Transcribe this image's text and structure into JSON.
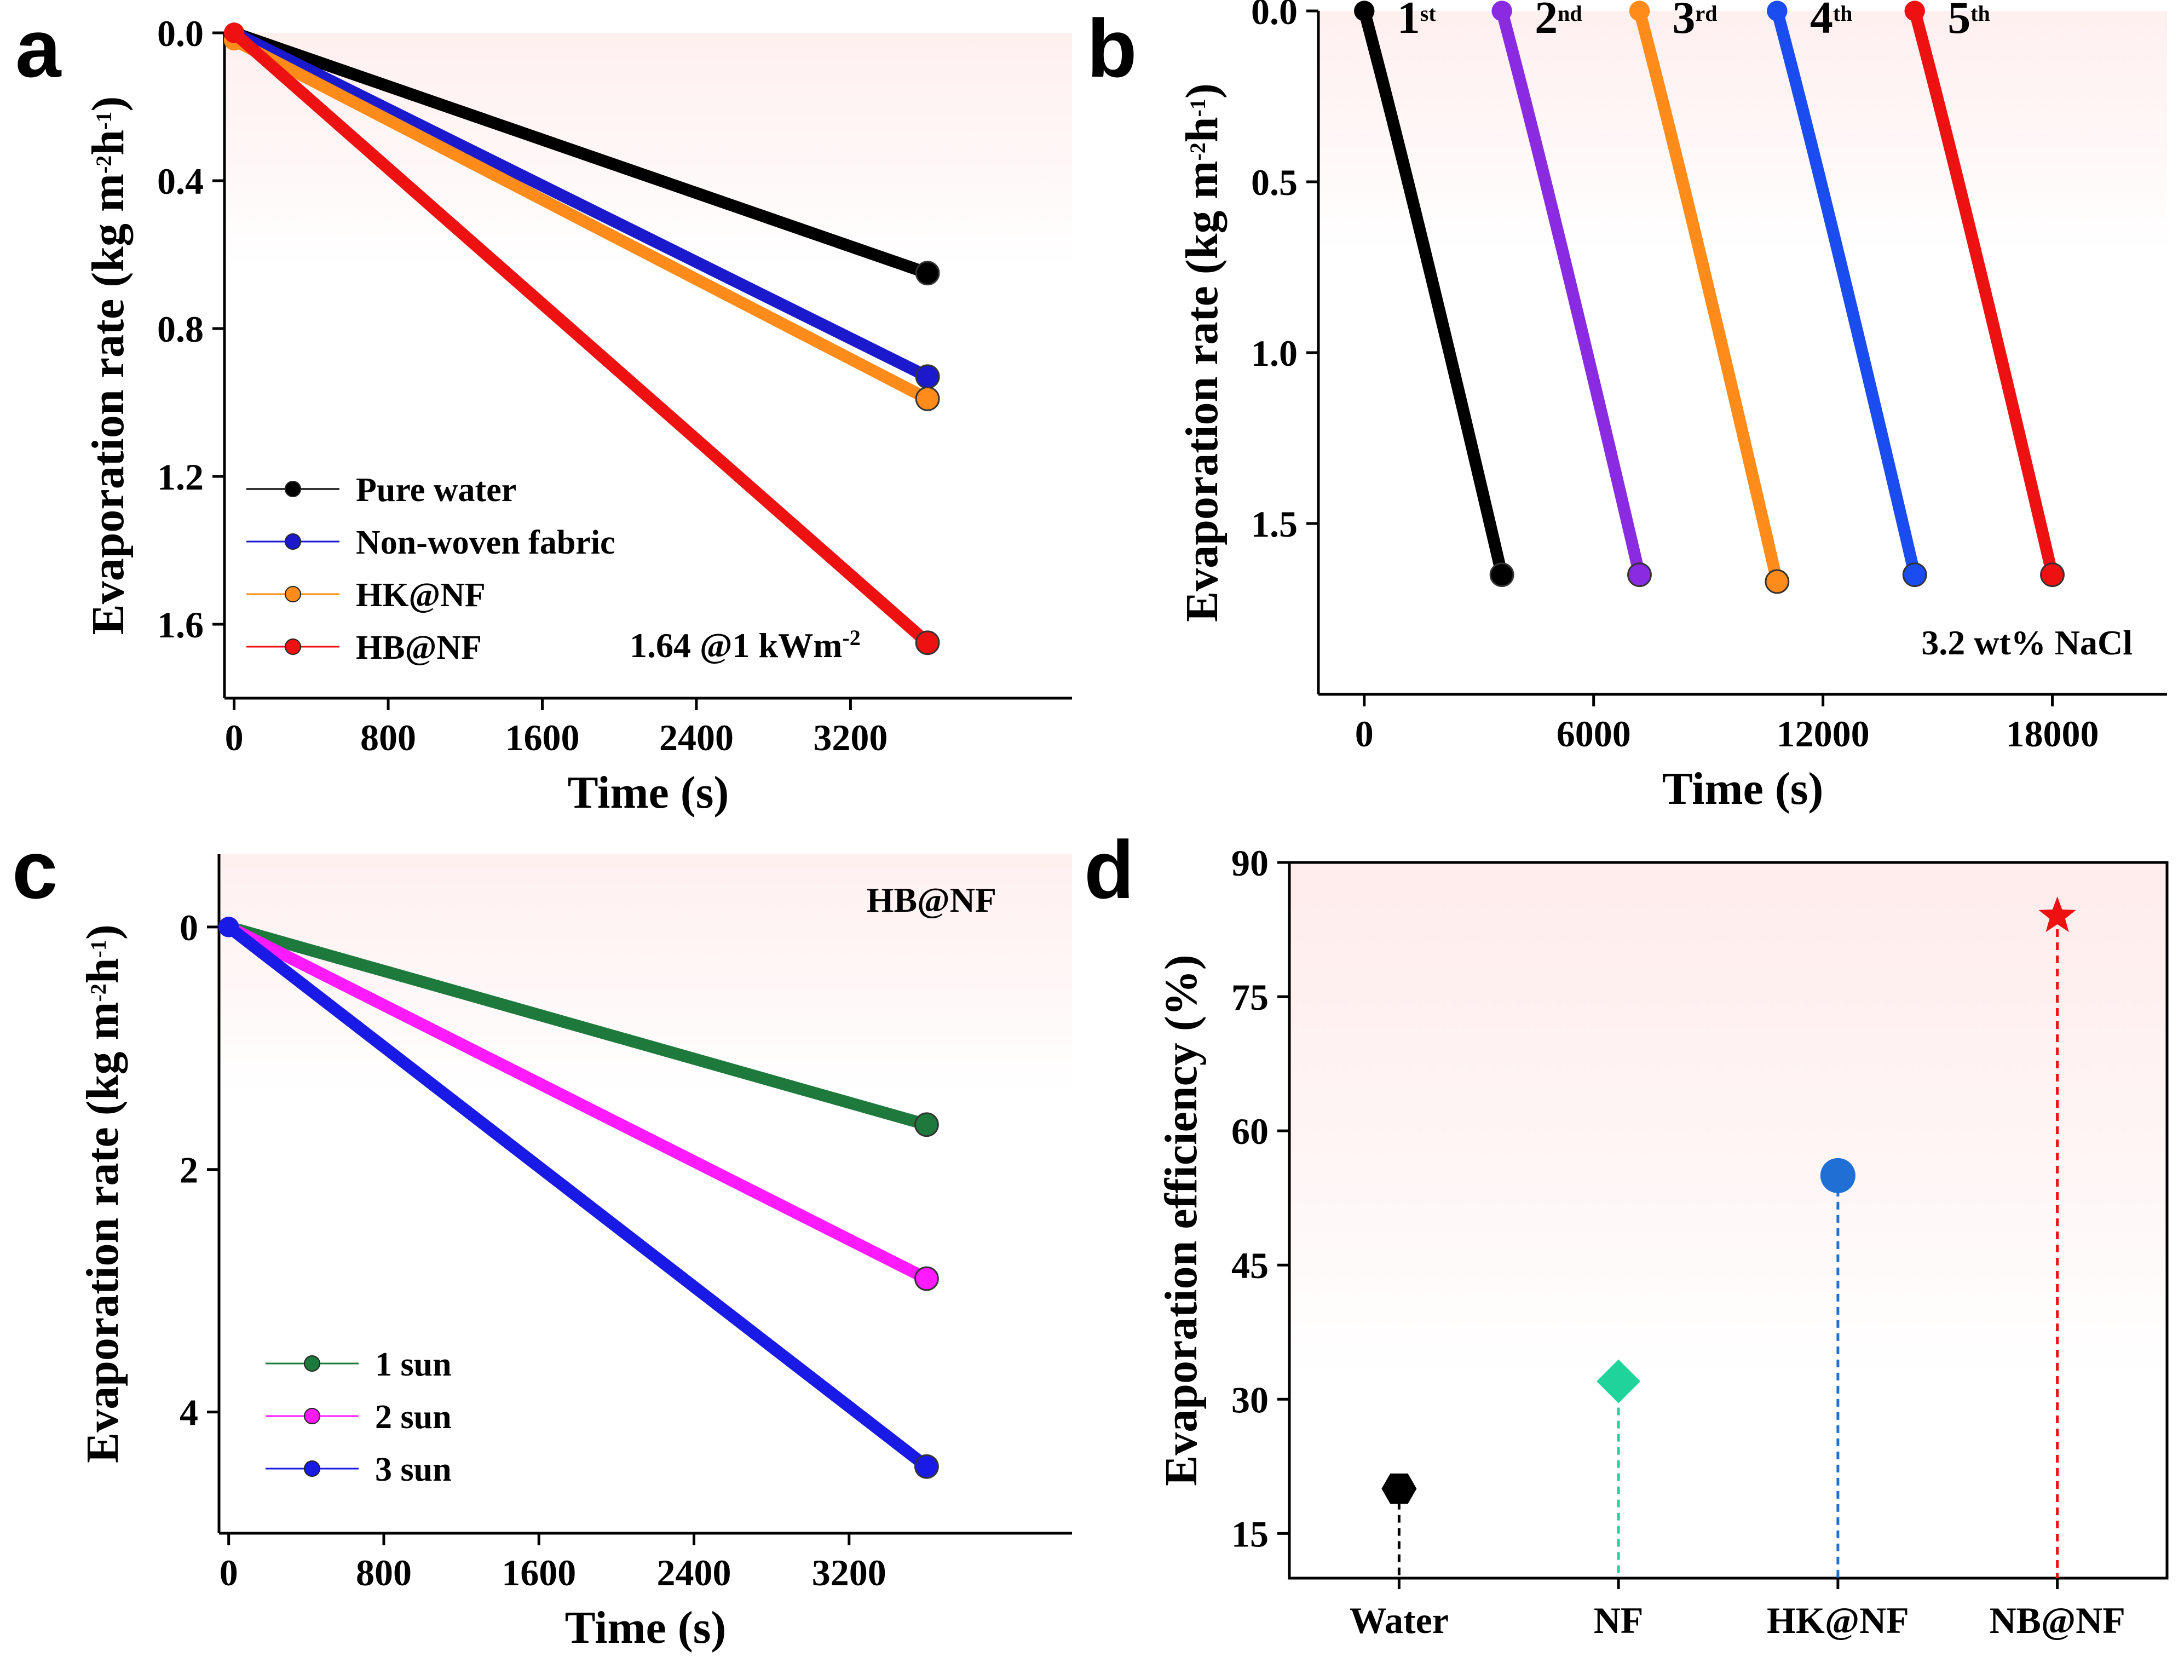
{
  "chart_data": [
    {
      "id": "a",
      "type": "line",
      "panel_label": "a",
      "xlabel": "Time (s)",
      "ylabel_parts": [
        "Evaporation rate (kg m",
        "-2",
        "h",
        "-1",
        ")"
      ],
      "xlim": [
        -50,
        4350
      ],
      "ylim": [
        0,
        1.8
      ],
      "y_inverted": true,
      "xticks": [
        0,
        800,
        1600,
        2400,
        3200
      ],
      "yticks": [
        0.0,
        0.4,
        0.8,
        1.2,
        1.6
      ],
      "ytick_labels": [
        "0.0",
        "0.4",
        "0.8",
        "1.2",
        "1.6"
      ],
      "legend_position": "bottom-left",
      "annotation_parts": [
        "1.64 @1 kWm",
        "-2"
      ],
      "series": [
        {
          "name": "Pure water",
          "color": "#000000",
          "x": [
            0,
            3600
          ],
          "y": [
            0.0,
            0.65
          ]
        },
        {
          "name": "Non-woven fabric",
          "color": "#1a1acc",
          "x": [
            0,
            3600
          ],
          "y": [
            0.0,
            0.93
          ]
        },
        {
          "name": "HK@NF",
          "color": "#ff8c1a",
          "x": [
            0,
            3600
          ],
          "y": [
            0.02,
            0.99
          ]
        },
        {
          "name": "HB@NF",
          "color": "#ee1111",
          "x": [
            0,
            3600
          ],
          "y": [
            0.0,
            1.65
          ]
        }
      ]
    },
    {
      "id": "b",
      "type": "line",
      "panel_label": "b",
      "xlabel": "Time (s)",
      "ylabel_parts": [
        "Evaporation rate (kg m",
        "-2",
        "h",
        "-1",
        ")"
      ],
      "xlim": [
        -1200,
        21000
      ],
      "ylim": [
        0,
        2.0
      ],
      "y_inverted": true,
      "xticks": [
        0,
        6000,
        12000,
        18000
      ],
      "yticks": [
        0.0,
        0.5,
        1.0,
        1.5
      ],
      "ytick_labels": [
        "0.0",
        "0.5",
        "1.0",
        "1.5"
      ],
      "annotation": "3.2 wt% NaCl",
      "series": [
        {
          "name": "1st",
          "label_main": "1",
          "label_sup": "st",
          "color": "#000000",
          "x": [
            0,
            3600
          ],
          "y": [
            0.0,
            1.65
          ]
        },
        {
          "name": "2nd",
          "label_main": "2",
          "label_sup": "nd",
          "color": "#8a2be2",
          "x": [
            3600,
            7200
          ],
          "y": [
            0.0,
            1.65
          ]
        },
        {
          "name": "3rd",
          "label_main": "3",
          "label_sup": "rd",
          "color": "#ff8c1a",
          "x": [
            7200,
            10800
          ],
          "y": [
            0.0,
            1.67
          ]
        },
        {
          "name": "4th",
          "label_main": "4",
          "label_sup": "th",
          "color": "#1a4cf0",
          "x": [
            10800,
            14400
          ],
          "y": [
            0.0,
            1.65
          ]
        },
        {
          "name": "5th",
          "label_main": "5",
          "label_sup": "th",
          "color": "#ee1111",
          "x": [
            14400,
            18000
          ],
          "y": [
            0.0,
            1.65
          ]
        }
      ]
    },
    {
      "id": "c",
      "type": "line",
      "panel_label": "c",
      "xlabel": "Time (s)",
      "ylabel_parts": [
        "Evaporation rate (kg m",
        "-2",
        "h",
        "-1",
        ")"
      ],
      "xlim": [
        -50,
        4350
      ],
      "ylim": [
        -0.6,
        5.0
      ],
      "y_inverted": true,
      "xticks": [
        0,
        800,
        1600,
        2400,
        3200
      ],
      "yticks": [
        0,
        2,
        4
      ],
      "ytick_labels": [
        "0",
        "2",
        "4"
      ],
      "legend_position": "bottom-left",
      "annotation": "HB@NF",
      "series": [
        {
          "name": "1 sun",
          "color": "#1e7a3c",
          "x": [
            0,
            3600
          ],
          "y": [
            0.0,
            1.63
          ]
        },
        {
          "name": "2 sun",
          "color": "#ff1aff",
          "x": [
            0,
            3600
          ],
          "y": [
            0.0,
            2.9
          ]
        },
        {
          "name": "3 sun",
          "color": "#1a1ae6",
          "x": [
            0,
            3600
          ],
          "y": [
            0.0,
            4.45
          ]
        }
      ]
    },
    {
      "id": "d",
      "type": "scatter",
      "panel_label": "d",
      "xlabel": "",
      "ylabel": "Evaporation efficiency (%)",
      "ylim": [
        10,
        90
      ],
      "yticks": [
        15,
        30,
        45,
        60,
        75,
        90
      ],
      "ytick_labels": [
        "15",
        "30",
        "45",
        "60",
        "75",
        "90"
      ],
      "categories": [
        "Water",
        "NF",
        "HK@NF",
        "NB@NF"
      ],
      "values": [
        20,
        32,
        55,
        84
      ],
      "markers": [
        "hexagon",
        "diamond",
        "circle",
        "star"
      ],
      "colors": [
        "#000000",
        "#1fd49a",
        "#1f6fd4",
        "#ee1111"
      ]
    }
  ]
}
